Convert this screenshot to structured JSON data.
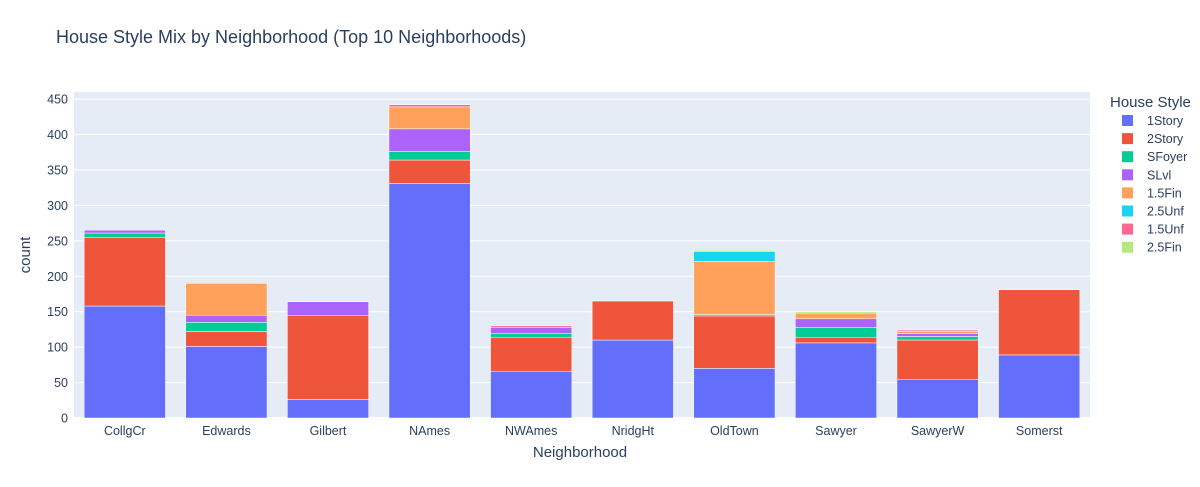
{
  "chart_data": {
    "type": "bar",
    "barmode": "stack",
    "title": "House Style Mix by Neighborhood (Top 10 Neighborhoods)",
    "xlabel": "Neighborhood",
    "ylabel": "count",
    "ylim": [
      0,
      460
    ],
    "yticks": [
      0,
      50,
      100,
      150,
      200,
      250,
      300,
      350,
      400,
      450
    ],
    "grid": true,
    "legend_title": "House Style",
    "legend_position": "right",
    "plot_background": "#e5ecf6",
    "categories": [
      "CollgCr",
      "Edwards",
      "Gilbert",
      "NAmes",
      "NWAmes",
      "NridgHt",
      "OldTown",
      "Sawyer",
      "SawyerW",
      "Somerst"
    ],
    "series": [
      {
        "name": "1Story",
        "color": "#636efa",
        "values": [
          158,
          101,
          26,
          331,
          66,
          110,
          70,
          106,
          54,
          89
        ]
      },
      {
        "name": "2Story",
        "color": "#EF553B",
        "values": [
          97,
          21,
          119,
          33,
          48,
          55,
          74,
          8,
          56,
          92
        ]
      },
      {
        "name": "SFoyer",
        "color": "#00cc96",
        "values": [
          6,
          13,
          0,
          12,
          5,
          0,
          2,
          14,
          5,
          0
        ]
      },
      {
        "name": "SLvl",
        "color": "#ab63fa",
        "values": [
          4,
          10,
          19,
          32,
          9,
          0,
          0,
          12,
          4,
          0
        ]
      },
      {
        "name": "1.5Fin",
        "color": "#FFA15A",
        "values": [
          0,
          45,
          0,
          31,
          0,
          0,
          75,
          8,
          3,
          0
        ]
      },
      {
        "name": "2.5Unf",
        "color": "#19d3f3",
        "values": [
          0,
          0,
          0,
          0,
          0,
          0,
          14,
          0,
          0,
          0
        ]
      },
      {
        "name": "1.5Unf",
        "color": "#FF6692",
        "values": [
          0,
          0,
          0,
          3,
          2,
          0,
          1,
          0,
          2,
          0
        ]
      },
      {
        "name": "2.5Fin",
        "color": "#B6E880",
        "values": [
          0,
          0,
          0,
          0,
          0,
          0,
          2,
          2,
          0,
          0
        ]
      }
    ]
  }
}
